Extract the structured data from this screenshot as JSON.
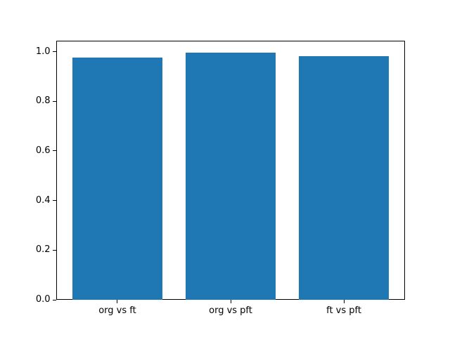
{
  "chart_data": {
    "type": "bar",
    "title": "",
    "categories": [
      "org vs ft",
      "org vs pft",
      "ft vs pft"
    ],
    "values": [
      0.975,
      0.995,
      0.983
    ],
    "bar_color": "#1f77b4",
    "bar_width": 0.8,
    "xlabel": "",
    "ylabel": "",
    "ylim": [
      0.0,
      1.045
    ],
    "yticks": [
      0.0,
      0.2,
      0.4,
      0.6,
      0.8,
      1.0
    ],
    "ytick_labels": [
      "0.0",
      "0.2",
      "0.4",
      "0.6",
      "0.8",
      "1.0"
    ],
    "grid": false,
    "legend": null,
    "background_color": "#ffffff",
    "axes_edge_color": "#000000",
    "tick_color": "#000000"
  }
}
